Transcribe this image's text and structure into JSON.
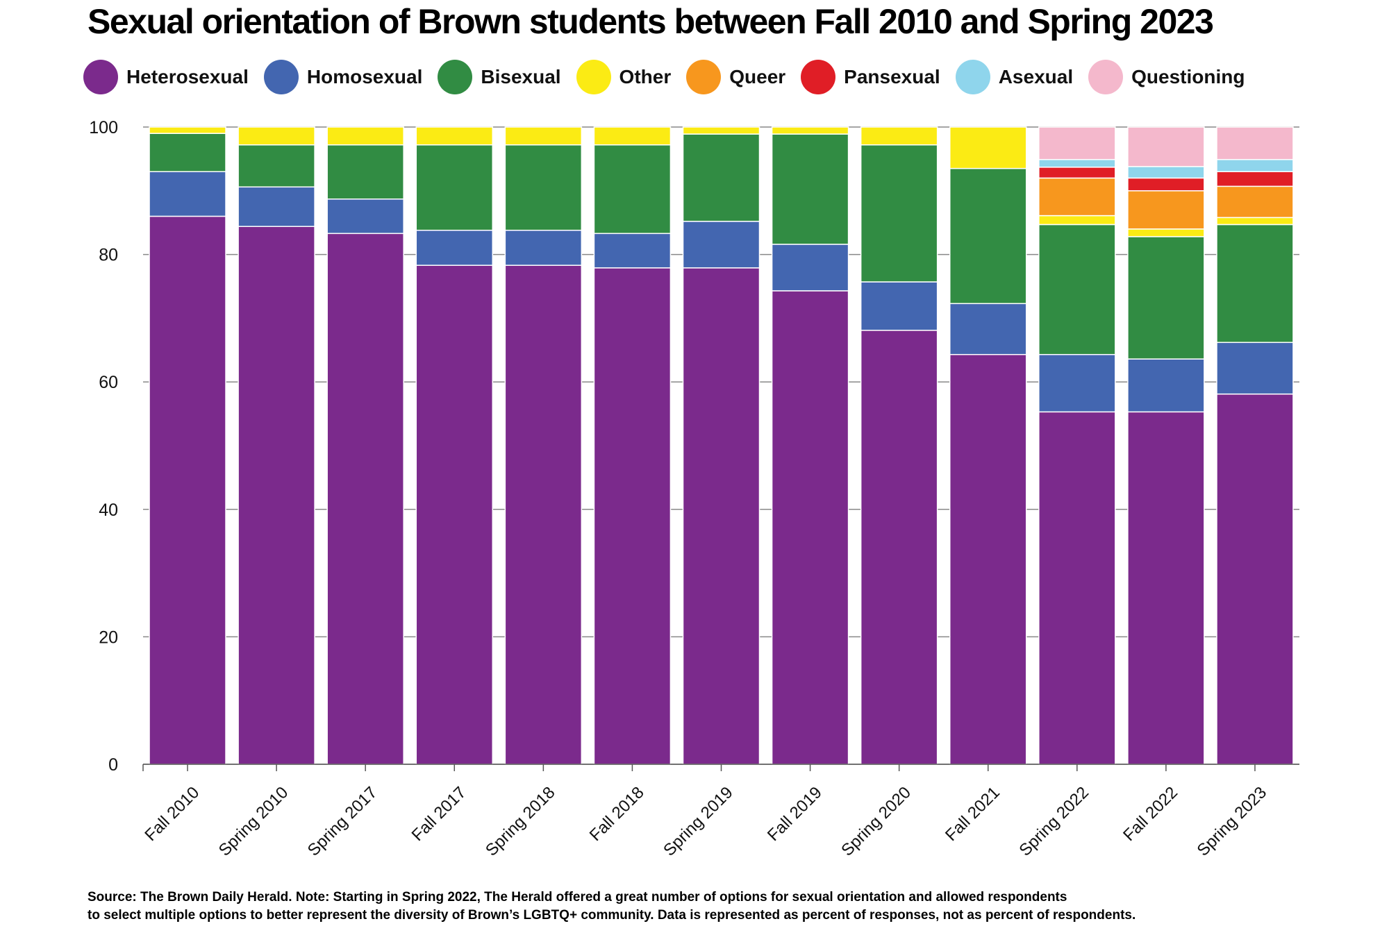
{
  "chart_data": {
    "type": "bar",
    "stacked": true,
    "title": "Sexual orientation of Brown students between Fall 2010 and Spring 2023",
    "xlabel": "",
    "ylabel": "",
    "ylim": [
      0,
      100
    ],
    "yticks": [
      "0",
      "20",
      "40",
      "60",
      "80",
      "100"
    ],
    "grid": true,
    "legend_position": "top",
    "categories": [
      "Fall 2010",
      "Spring 2010",
      "Spring 2017",
      "Fall 2017",
      "Spring 2018",
      "Fall 2018",
      "Spring 2019",
      "Fall 2019",
      "Spring 2020",
      "Fall 2021",
      "Spring 2022",
      "Fall 2022",
      "Spring 2023"
    ],
    "series": [
      {
        "name": "Heterosexual",
        "color": "#7b2a8c",
        "values": [
          86,
          84.4,
          83.3,
          78.3,
          78.3,
          77.9,
          77.9,
          74.3,
          68.1,
          64.3,
          55.3,
          55.3,
          58.1
        ]
      },
      {
        "name": "Homosexual",
        "color": "#4366b0",
        "values": [
          7,
          6.2,
          5.4,
          5.5,
          5.5,
          5.4,
          7.3,
          7.3,
          7.6,
          8,
          9,
          8.3,
          8.1
        ]
      },
      {
        "name": "Bisexual",
        "color": "#318c43",
        "values": [
          6,
          6.6,
          8.5,
          13.4,
          13.4,
          13.9,
          13.7,
          17.3,
          21.5,
          21.2,
          20.4,
          19.2,
          18.5
        ]
      },
      {
        "name": "Other",
        "color": "#fbeb14",
        "values": [
          1,
          2.8,
          2.8,
          2.8,
          2.8,
          2.8,
          1.1,
          1.1,
          2.8,
          6.5,
          1.4,
          1.2,
          1.1
        ]
      },
      {
        "name": "Queer",
        "color": "#f7971e",
        "values": [
          0,
          0,
          0,
          0,
          0,
          0,
          0,
          0,
          0,
          0,
          5.9,
          6,
          4.9
        ]
      },
      {
        "name": "Pansexual",
        "color": "#e01e26",
        "values": [
          0,
          0,
          0,
          0,
          0,
          0,
          0,
          0,
          0,
          0,
          1.7,
          2,
          2.3
        ]
      },
      {
        "name": "Asexual",
        "color": "#8fd5ec",
        "values": [
          0,
          0,
          0,
          0,
          0,
          0,
          0,
          0,
          0,
          0,
          1.2,
          1.8,
          1.9
        ]
      },
      {
        "name": "Questioning",
        "color": "#f4b8cc",
        "values": [
          0,
          0,
          0,
          0,
          0,
          0,
          0,
          0,
          0,
          0,
          5.1,
          6.2,
          5.1
        ]
      }
    ],
    "note_lines": [
      "Source: The Brown Daily Herald. Note: Starting in Spring 2022, The Herald offered a great number of options for sexual orientation and allowed respondents",
      "to select multiple options to better represent the diversity of Brown’s LGBTQ+ community. Data is represented as percent of responses, not as percent of respondents."
    ]
  }
}
